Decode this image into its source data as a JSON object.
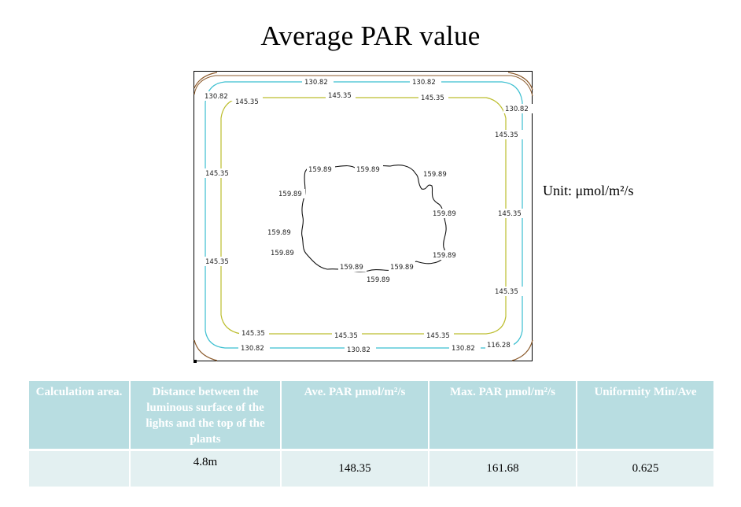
{
  "title": "Average PAR value",
  "unit_label": "Unit: μmol/m²/s",
  "chart_data": {
    "type": "contour",
    "levels": [
      {
        "value": "116.28",
        "color": "#8b5a2b"
      },
      {
        "value": "130.82",
        "color": "#3bbfd0"
      },
      {
        "value": "145.35",
        "color": "#bcbd2d"
      },
      {
        "value": "159.89",
        "color": "#111111"
      }
    ],
    "labels": {
      "l130": "130.82",
      "l145": "145.35",
      "l159": "159.89",
      "l116": "116.28"
    }
  },
  "table": {
    "headers": [
      "Calculation area.",
      "Distance between the luminous surface of the lights and the top of the plants",
      "Ave. PAR μmol/m²/s",
      "Max. PAR μmol/m²/s",
      "Uniformity Min/Ave"
    ],
    "row": [
      "",
      "4.8m",
      "148.35",
      "161.68",
      "0.625"
    ]
  }
}
